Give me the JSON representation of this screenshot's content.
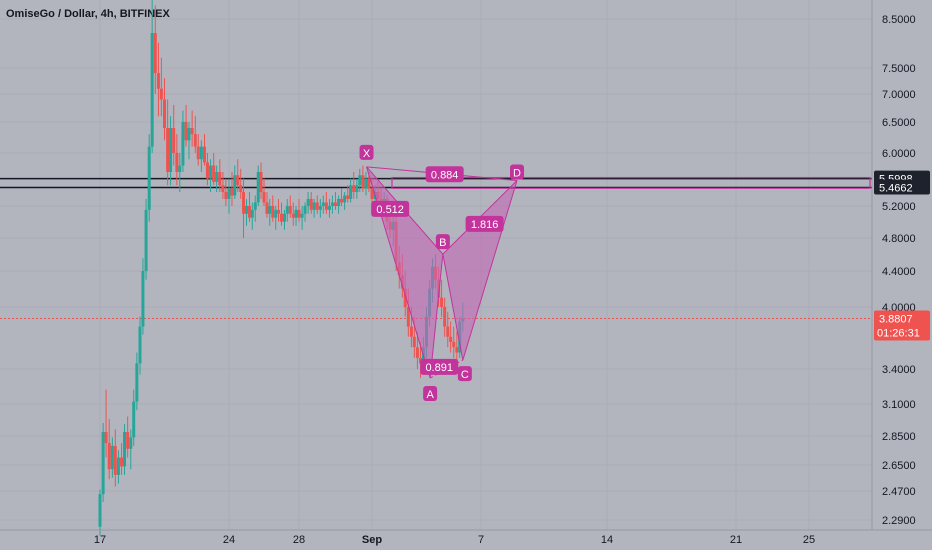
{
  "header": {
    "title": "OmiseGo / Dollar, 4h, BITFINEX"
  },
  "colors": {
    "background": "#b2b5be",
    "up": "#26a69a",
    "down": "#ef5350",
    "pattern": "#c2349c",
    "pattern_fill": "#c467b6",
    "level_line": "#131722",
    "price_line": "#ef5350",
    "axis_text": "#131722"
  },
  "chart_data": {
    "type": "candlestick",
    "title": "OmiseGo / Dollar, 4h, BITFINEX",
    "ylim": [
      2.2,
      9.0
    ],
    "y_scale": "log",
    "y_ticks": [
      "8.5000",
      "7.5000",
      "7.0000",
      "6.5000",
      "6.0000",
      "5.2000",
      "4.8000",
      "4.4000",
      "4.0000",
      "3.4000",
      "3.1000",
      "2.8500",
      "2.6500",
      "2.4700",
      "2.2900"
    ],
    "x_ticks": [
      "17",
      "24",
      "28",
      "Sep",
      "7",
      "14",
      "21",
      "25"
    ],
    "levels": [
      {
        "label": "5.5998",
        "value": 5.5998
      },
      {
        "label": "5.4662",
        "value": 5.4662
      }
    ],
    "current_price": {
      "label": "3.8807",
      "value": 3.8807,
      "countdown": "01:26:31"
    },
    "harmonic_pattern": {
      "points": [
        {
          "name": "X",
          "day": 31.7,
          "price": 5.78
        },
        {
          "name": "A",
          "day": 35.2,
          "price": 3.32
        },
        {
          "name": "B",
          "day": 35.9,
          "price": 4.6
        },
        {
          "name": "C",
          "day": 37.0,
          "price": 3.48
        },
        {
          "name": "D",
          "day": 40.0,
          "price": 5.57
        }
      ],
      "ratios": [
        {
          "label": "0.884",
          "day": 36.0,
          "price": 5.65
        },
        {
          "label": "0.512",
          "day": 33.0,
          "price": 5.15
        },
        {
          "label": "1.816",
          "day": 38.2,
          "price": 4.96
        },
        {
          "label": "0.891",
          "day": 35.7,
          "price": 3.41
        }
      ]
    },
    "candles": [
      [
        17.0,
        2.25,
        2.48,
        2.2,
        2.45
      ],
      [
        17.17,
        2.45,
        2.95,
        2.4,
        2.88
      ],
      [
        17.33,
        2.88,
        3.22,
        2.7,
        2.8
      ],
      [
        17.5,
        2.8,
        2.98,
        2.55,
        2.62
      ],
      [
        17.67,
        2.62,
        2.84,
        2.56,
        2.78
      ],
      [
        17.83,
        2.78,
        2.9,
        2.5,
        2.58
      ],
      [
        18.0,
        2.58,
        2.75,
        2.52,
        2.7
      ],
      [
        18.17,
        2.7,
        2.8,
        2.58,
        2.64
      ],
      [
        18.33,
        2.64,
        2.94,
        2.58,
        2.88
      ],
      [
        18.5,
        2.88,
        3.0,
        2.7,
        2.76
      ],
      [
        18.67,
        2.76,
        2.9,
        2.62,
        2.84
      ],
      [
        18.83,
        2.84,
        3.22,
        2.78,
        3.12
      ],
      [
        19.0,
        3.12,
        3.55,
        3.05,
        3.45
      ],
      [
        19.17,
        3.45,
        3.9,
        3.35,
        3.8
      ],
      [
        19.33,
        3.8,
        4.55,
        3.72,
        4.4
      ],
      [
        19.5,
        4.4,
        5.3,
        4.3,
        5.15
      ],
      [
        19.67,
        5.15,
        6.3,
        5.0,
        6.1
      ],
      [
        19.83,
        6.1,
        9.2,
        6.0,
        8.2
      ],
      [
        20.0,
        8.2,
        8.8,
        7.0,
        7.4
      ],
      [
        20.17,
        7.4,
        8.0,
        6.6,
        7.1
      ],
      [
        20.33,
        7.1,
        7.7,
        6.6,
        6.9
      ],
      [
        20.5,
        6.9,
        7.3,
        6.2,
        6.4
      ],
      [
        20.67,
        6.4,
        6.9,
        5.5,
        5.7
      ],
      [
        20.83,
        5.7,
        6.6,
        5.5,
        6.4
      ],
      [
        21.0,
        6.4,
        6.8,
        5.8,
        6.0
      ],
      [
        21.17,
        6.0,
        6.3,
        5.5,
        5.7
      ],
      [
        21.33,
        5.7,
        6.0,
        5.4,
        5.8
      ],
      [
        21.5,
        5.8,
        6.7,
        5.7,
        6.5
      ],
      [
        21.67,
        6.5,
        6.8,
        6.1,
        6.2
      ],
      [
        21.83,
        6.2,
        6.5,
        5.9,
        6.4
      ],
      [
        22.0,
        6.4,
        6.7,
        6.1,
        6.3
      ],
      [
        22.17,
        6.3,
        6.6,
        6.0,
        6.1
      ],
      [
        22.33,
        6.1,
        6.3,
        5.8,
        5.9
      ],
      [
        22.5,
        5.9,
        6.2,
        5.7,
        6.1
      ],
      [
        22.67,
        6.1,
        6.3,
        5.8,
        5.85
      ],
      [
        22.83,
        5.85,
        6.0,
        5.5,
        5.6
      ],
      [
        23.0,
        5.6,
        5.9,
        5.4,
        5.8
      ],
      [
        23.17,
        5.8,
        6.0,
        5.5,
        5.55
      ],
      [
        23.33,
        5.55,
        5.8,
        5.4,
        5.7
      ],
      [
        23.5,
        5.7,
        5.9,
        5.4,
        5.5
      ],
      [
        23.67,
        5.5,
        5.7,
        5.3,
        5.4
      ],
      [
        23.83,
        5.4,
        5.6,
        5.2,
        5.3
      ],
      [
        24.0,
        5.3,
        5.6,
        5.1,
        5.45
      ],
      [
        24.17,
        5.45,
        5.7,
        5.2,
        5.35
      ],
      [
        24.33,
        5.35,
        5.8,
        5.3,
        5.65
      ],
      [
        24.5,
        5.65,
        5.9,
        5.4,
        5.5
      ],
      [
        24.67,
        5.5,
        5.75,
        5.3,
        5.4
      ],
      [
        24.83,
        5.4,
        5.6,
        4.8,
        5.1
      ],
      [
        25.0,
        5.1,
        5.3,
        4.95,
        5.2
      ],
      [
        25.17,
        5.2,
        5.4,
        5.0,
        5.05
      ],
      [
        25.33,
        5.05,
        5.25,
        4.9,
        5.15
      ],
      [
        25.5,
        5.15,
        5.35,
        5.0,
        5.25
      ],
      [
        25.67,
        5.25,
        5.8,
        5.2,
        5.7
      ],
      [
        25.83,
        5.7,
        5.85,
        5.3,
        5.4
      ],
      [
        26.0,
        5.4,
        5.6,
        5.2,
        5.25
      ],
      [
        26.17,
        5.25,
        5.4,
        5.05,
        5.1
      ],
      [
        26.33,
        5.1,
        5.3,
        4.95,
        5.2
      ],
      [
        26.5,
        5.2,
        5.35,
        5.0,
        5.05
      ],
      [
        26.67,
        5.05,
        5.2,
        4.9,
        5.15
      ],
      [
        26.83,
        5.15,
        5.3,
        5.0,
        5.1
      ],
      [
        27.0,
        5.1,
        5.25,
        4.95,
        5.0
      ],
      [
        27.17,
        5.0,
        5.15,
        4.9,
        5.1
      ],
      [
        27.33,
        5.1,
        5.3,
        5.0,
        5.2
      ],
      [
        27.5,
        5.2,
        5.35,
        5.05,
        5.1
      ],
      [
        27.67,
        5.1,
        5.25,
        4.95,
        5.05
      ],
      [
        27.83,
        5.05,
        5.2,
        4.95,
        5.15
      ],
      [
        28.0,
        5.15,
        5.3,
        5.0,
        5.05
      ],
      [
        28.17,
        5.05,
        5.2,
        4.9,
        5.1
      ],
      [
        28.33,
        5.1,
        5.25,
        5.0,
        5.2
      ],
      [
        28.5,
        5.2,
        5.4,
        5.1,
        5.3
      ],
      [
        28.67,
        5.3,
        5.4,
        5.1,
        5.15
      ],
      [
        28.83,
        5.15,
        5.3,
        5.05,
        5.25
      ],
      [
        29.0,
        5.25,
        5.35,
        5.1,
        5.15
      ],
      [
        29.17,
        5.15,
        5.3,
        5.05,
        5.2
      ],
      [
        29.33,
        5.2,
        5.35,
        5.1,
        5.25
      ],
      [
        29.5,
        5.25,
        5.4,
        5.1,
        5.15
      ],
      [
        29.67,
        5.15,
        5.3,
        5.05,
        5.2
      ],
      [
        29.83,
        5.2,
        5.35,
        5.1,
        5.25
      ],
      [
        30.0,
        5.25,
        5.4,
        5.15,
        5.2
      ],
      [
        30.17,
        5.2,
        5.35,
        5.1,
        5.3
      ],
      [
        30.33,
        5.3,
        5.45,
        5.2,
        5.25
      ],
      [
        30.5,
        5.25,
        5.4,
        5.15,
        5.35
      ],
      [
        30.67,
        5.35,
        5.5,
        5.25,
        5.3
      ],
      [
        30.83,
        5.3,
        5.6,
        5.25,
        5.5
      ],
      [
        31.0,
        5.5,
        5.7,
        5.3,
        5.4
      ],
      [
        31.17,
        5.4,
        5.6,
        5.3,
        5.5
      ],
      [
        31.33,
        5.5,
        5.75,
        5.4,
        5.65
      ],
      [
        31.5,
        5.65,
        5.8,
        5.4,
        5.45
      ],
      [
        31.67,
        5.45,
        5.7,
        5.35,
        5.6
      ],
      [
        31.83,
        5.6,
        5.7,
        5.4,
        5.45
      ],
      [
        32.0,
        5.45,
        5.6,
        5.2,
        5.3
      ],
      [
        32.17,
        5.3,
        5.5,
        5.2,
        5.4
      ],
      [
        32.33,
        5.4,
        5.55,
        5.25,
        5.3
      ],
      [
        32.5,
        5.3,
        5.45,
        5.15,
        5.2
      ],
      [
        32.67,
        5.2,
        5.4,
        5.05,
        5.3
      ],
      [
        32.83,
        5.3,
        5.35,
        4.9,
        5.0
      ],
      [
        33.0,
        5.0,
        5.2,
        4.8,
        4.9
      ],
      [
        33.17,
        4.9,
        5.1,
        4.7,
        5.0
      ],
      [
        33.33,
        5.0,
        5.1,
        4.4,
        4.5
      ],
      [
        33.5,
        4.5,
        4.7,
        4.2,
        4.35
      ],
      [
        33.67,
        4.35,
        4.6,
        4.1,
        4.2
      ],
      [
        33.83,
        4.2,
        4.4,
        3.9,
        4.0
      ],
      [
        34.0,
        4.0,
        4.2,
        3.7,
        3.8
      ],
      [
        34.17,
        3.8,
        4.0,
        3.6,
        3.7
      ],
      [
        34.33,
        3.7,
        3.9,
        3.5,
        3.6
      ],
      [
        34.5,
        3.6,
        3.75,
        3.4,
        3.5
      ],
      [
        34.67,
        3.5,
        3.65,
        3.32,
        3.45
      ],
      [
        34.83,
        3.45,
        3.7,
        3.35,
        3.6
      ],
      [
        35.0,
        3.6,
        4.0,
        3.5,
        3.9
      ],
      [
        35.17,
        3.9,
        4.3,
        3.8,
        4.2
      ],
      [
        35.33,
        4.2,
        4.55,
        4.05,
        4.45
      ],
      [
        35.5,
        4.45,
        4.6,
        4.2,
        4.3
      ],
      [
        35.67,
        4.3,
        4.45,
        4.0,
        4.1
      ],
      [
        35.83,
        4.1,
        4.3,
        3.9,
        4.0
      ],
      [
        36.0,
        4.0,
        4.1,
        3.7,
        3.8
      ],
      [
        36.17,
        3.8,
        3.95,
        3.6,
        3.7
      ],
      [
        36.33,
        3.7,
        3.85,
        3.55,
        3.65
      ],
      [
        36.5,
        3.65,
        3.8,
        3.5,
        3.6
      ],
      [
        36.67,
        3.6,
        3.75,
        3.48,
        3.55
      ],
      [
        36.83,
        3.55,
        3.9,
        3.5,
        3.85
      ],
      [
        37.0,
        3.85,
        4.05,
        3.75,
        3.88
      ]
    ]
  }
}
